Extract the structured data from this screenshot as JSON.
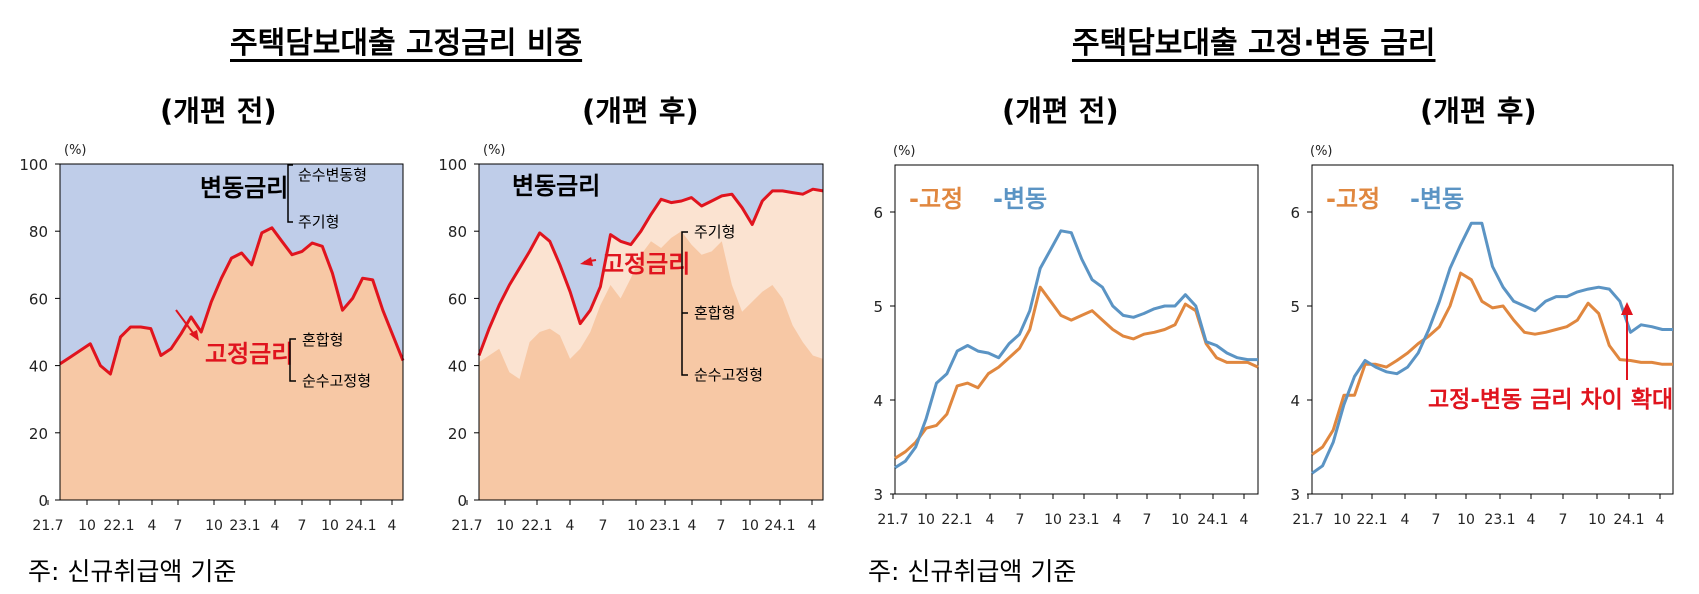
{
  "titles": {
    "left": "주택담보대출 고정금리 비중",
    "right": "주택담보대출 고정·변동 금리"
  },
  "subtitles": {
    "before": "(개편 전)",
    "after": "(개편 후)"
  },
  "notes": {
    "left": "주: 신규취급액 기준",
    "right": "주: 신규취급액 기준"
  },
  "chart_data": [
    {
      "type": "area",
      "title": "주택담보대출 고정금리 비중 (개편 전)",
      "unit_label": "(%)",
      "ylim": [
        0,
        100
      ],
      "yticks": [
        "0",
        "20",
        "40",
        "60",
        "80",
        "100"
      ],
      "xticks": [
        "21.7",
        "10",
        "22.1",
        "4",
        "7",
        "10",
        "23.1",
        "4",
        "7",
        "10",
        "24.1",
        "4"
      ],
      "series": [
        {
          "name": "고정금리",
          "color": "#f7c8a5",
          "values": [
            40.5,
            42.5,
            44.5,
            46.5,
            40,
            37.5,
            48.5,
            51.5,
            51.5,
            51,
            43,
            45,
            49.5,
            54.5,
            50,
            59,
            66,
            72,
            73.5,
            70,
            79.5,
            81,
            77,
            73,
            74,
            76.5,
            75.5,
            67.5,
            56.5,
            60,
            66,
            65.5,
            56.5,
            49,
            41.5
          ]
        },
        {
          "name": "변동금리",
          "color": "#bfcde9",
          "values": "remainder to 100"
        }
      ],
      "labels": {
        "floating": "변동금리",
        "fixed": "고정금리",
        "floating_sub": [
          "순수변동형",
          "주기형"
        ],
        "fixed_sub": [
          "혼합형",
          "순수고정형"
        ]
      }
    },
    {
      "type": "area",
      "title": "주택담보대출 고정금리 비중 (개편 후)",
      "unit_label": "(%)",
      "ylim": [
        0,
        100
      ],
      "yticks": [
        "0",
        "20",
        "40",
        "60",
        "80",
        "100"
      ],
      "xticks": [
        "21.7",
        "10",
        "22.1",
        "4",
        "7",
        "10",
        "23.1",
        "4",
        "7",
        "10",
        "24.1",
        "4"
      ],
      "series": [
        {
          "name": "고정금리",
          "color": "#f7c8a5",
          "values": [
            43,
            51,
            58,
            64,
            69,
            74,
            79.5,
            77,
            70,
            62,
            52.5,
            56.5,
            63.5,
            79,
            77,
            76,
            80,
            85,
            89.5,
            88.5,
            89,
            90,
            87.5,
            89,
            90.5,
            91,
            87,
            82,
            89,
            92,
            92,
            91.5,
            91,
            92.5,
            92
          ]
        },
        {
          "name": "변동금리",
          "color": "#bfcde9",
          "values": "remainder to 100"
        }
      ],
      "hybrid_boundary": [
        41,
        43,
        45,
        38,
        36,
        47,
        50,
        51,
        49,
        42,
        45,
        50,
        58,
        64,
        60,
        66,
        73,
        77,
        75,
        78,
        80,
        76,
        73,
        74,
        77,
        64,
        56,
        59,
        62,
        64,
        60,
        52,
        47,
        43,
        42
      ],
      "labels": {
        "floating": "변동금리",
        "fixed": "고정금리",
        "fixed_sub": [
          "주기형",
          "혼합형",
          "순수고정형"
        ]
      }
    },
    {
      "type": "line",
      "title": "주택담보대출 고정·변동 금리 (개편 전)",
      "unit_label": "(%)",
      "ylim": [
        3,
        6.5
      ],
      "yticks": [
        "3",
        "4",
        "5",
        "6"
      ],
      "xticks": [
        "21.7",
        "10",
        "22.1",
        "4",
        "7",
        "10",
        "23.1",
        "4",
        "7",
        "10",
        "24.1",
        "4"
      ],
      "legend": [
        "-고정",
        "-변동"
      ],
      "series": [
        {
          "name": "고정",
          "color": "#e0873f",
          "values": [
            3.38,
            3.45,
            3.55,
            3.7,
            3.73,
            3.85,
            4.15,
            4.18,
            4.13,
            4.28,
            4.35,
            4.45,
            4.55,
            4.75,
            5.2,
            5.05,
            4.9,
            4.85,
            4.9,
            4.95,
            4.85,
            4.75,
            4.68,
            4.65,
            4.7,
            4.72,
            4.75,
            4.8,
            5.02,
            4.95,
            4.6,
            4.45,
            4.4,
            4.4,
            4.4,
            4.35
          ]
        },
        {
          "name": "변동",
          "color": "#5b94c4",
          "values": [
            3.28,
            3.35,
            3.5,
            3.8,
            4.18,
            4.28,
            4.52,
            4.58,
            4.52,
            4.5,
            4.45,
            4.6,
            4.7,
            4.95,
            5.4,
            5.6,
            5.8,
            5.78,
            5.5,
            5.28,
            5.2,
            5.0,
            4.9,
            4.88,
            4.92,
            4.97,
            5.0,
            5.0,
            5.12,
            5.0,
            4.62,
            4.58,
            4.5,
            4.45,
            4.43,
            4.43
          ]
        }
      ]
    },
    {
      "type": "line",
      "title": "주택담보대출 고정·변동 금리 (개편 후)",
      "unit_label": "(%)",
      "ylim": [
        3,
        6.5
      ],
      "yticks": [
        "3",
        "4",
        "5",
        "6"
      ],
      "xticks": [
        "21.7",
        "10",
        "22.1",
        "4",
        "7",
        "10",
        "23.1",
        "4",
        "7",
        "10",
        "24.1",
        "4"
      ],
      "legend": [
        "-고정",
        "-변동"
      ],
      "annotation": "고정-변동 금리 차이 확대",
      "series": [
        {
          "name": "고정",
          "color": "#e0873f",
          "values": [
            3.42,
            3.5,
            3.68,
            4.05,
            4.05,
            4.38,
            4.38,
            4.35,
            4.42,
            4.5,
            4.6,
            4.68,
            4.78,
            5.0,
            5.35,
            5.28,
            5.05,
            4.98,
            5.0,
            4.85,
            4.72,
            4.7,
            4.72,
            4.75,
            4.78,
            4.85,
            5.03,
            4.92,
            4.58,
            4.43,
            4.42,
            4.4,
            4.4,
            4.38,
            4.38
          ]
        },
        {
          "name": "변동",
          "color": "#5b94c4",
          "values": [
            3.22,
            3.3,
            3.55,
            3.95,
            4.25,
            4.42,
            4.35,
            4.3,
            4.28,
            4.35,
            4.5,
            4.75,
            5.05,
            5.4,
            5.65,
            5.88,
            5.88,
            5.42,
            5.2,
            5.05,
            5.0,
            4.95,
            5.05,
            5.1,
            5.1,
            5.15,
            5.18,
            5.2,
            5.18,
            5.05,
            4.72,
            4.8,
            4.78,
            4.75,
            4.75
          ]
        }
      ]
    }
  ]
}
